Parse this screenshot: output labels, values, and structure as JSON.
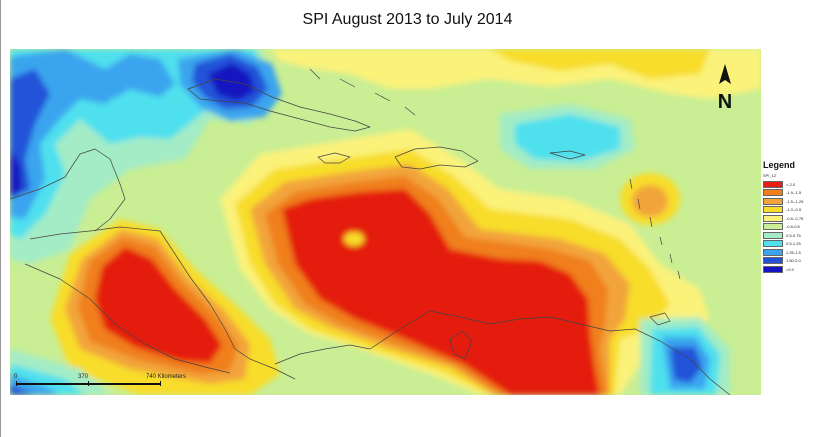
{
  "title": "SPI August 2013  to July 2014",
  "legend": {
    "title": "Legend",
    "layer": "SPI_12",
    "classes": [
      {
        "label": "<-2.0",
        "color": "#e41e10"
      },
      {
        "label": "-1.9--1.5",
        "color": "#f07f1a"
      },
      {
        "label": "-1.5--1.25",
        "color": "#f2a43a"
      },
      {
        "label": "-1.0--0.5",
        "color": "#f8dd2c"
      },
      {
        "label": "-0.5--0.75",
        "color": "#fbf27a"
      },
      {
        "label": "-0.5-0.5",
        "color": "#c9ee94"
      },
      {
        "label": "0.5-0.75",
        "color": "#a3ecc6"
      },
      {
        "label": "0.5-1.25",
        "color": "#4fe0ee"
      },
      {
        "label": "1.25-1.5",
        "color": "#3aa4ee"
      },
      {
        "label": "1.50-2.0",
        "color": "#2152d8"
      },
      {
        "label": ">2.0",
        "color": "#1414c0"
      }
    ]
  },
  "scale": {
    "tick0": "0",
    "tick1": "370",
    "tick2": "740 Kilometers"
  },
  "north": {
    "label": "N",
    "icon": "north-arrow-icon"
  }
}
